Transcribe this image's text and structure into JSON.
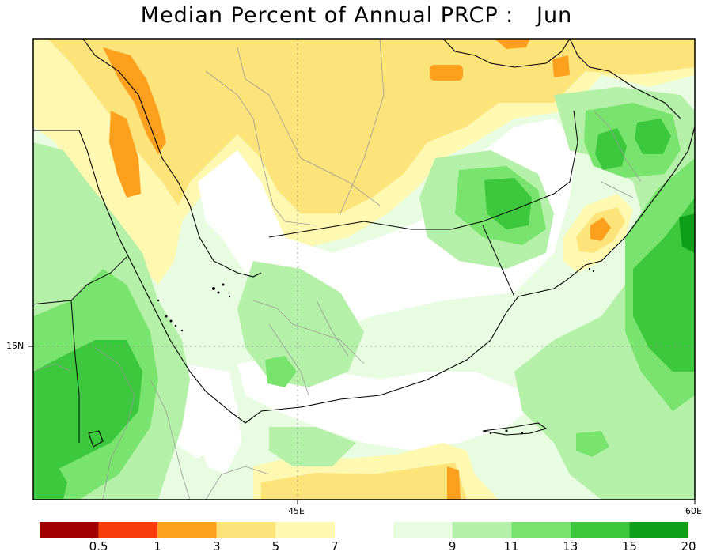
{
  "title": "Median Percent of Annual PRCP :   Jun",
  "axes": {
    "lat_label": "15N",
    "lon_labels": [
      "45E",
      "60E"
    ]
  },
  "colorbar": {
    "left": [
      {
        "color": "#a00000"
      },
      {
        "color": "#f83c0a"
      },
      {
        "color": "#fca01e"
      },
      {
        "color": "#fde47a"
      },
      {
        "color": "#fef8b0"
      }
    ],
    "left_labels": [
      "0.5",
      "1",
      "3",
      "5",
      "7"
    ],
    "right": [
      {
        "color": "#e8fce2"
      },
      {
        "color": "#b4f0a8"
      },
      {
        "color": "#78e46e"
      },
      {
        "color": "#3cc83c"
      },
      {
        "color": "#0e9e18"
      }
    ],
    "right_labels": [
      "9",
      "11",
      "13",
      "15",
      "20"
    ]
  },
  "palette": {
    "white": "#ffffff",
    "yellow_pale": "#fef8b0",
    "yellow": "#fde47a",
    "orange": "#fca01e",
    "green_pale": "#e8fce2",
    "green_light": "#b4f0a8",
    "green_mid": "#78e46e",
    "green": "#3cc83c",
    "green_dark": "#0e9e18"
  }
}
